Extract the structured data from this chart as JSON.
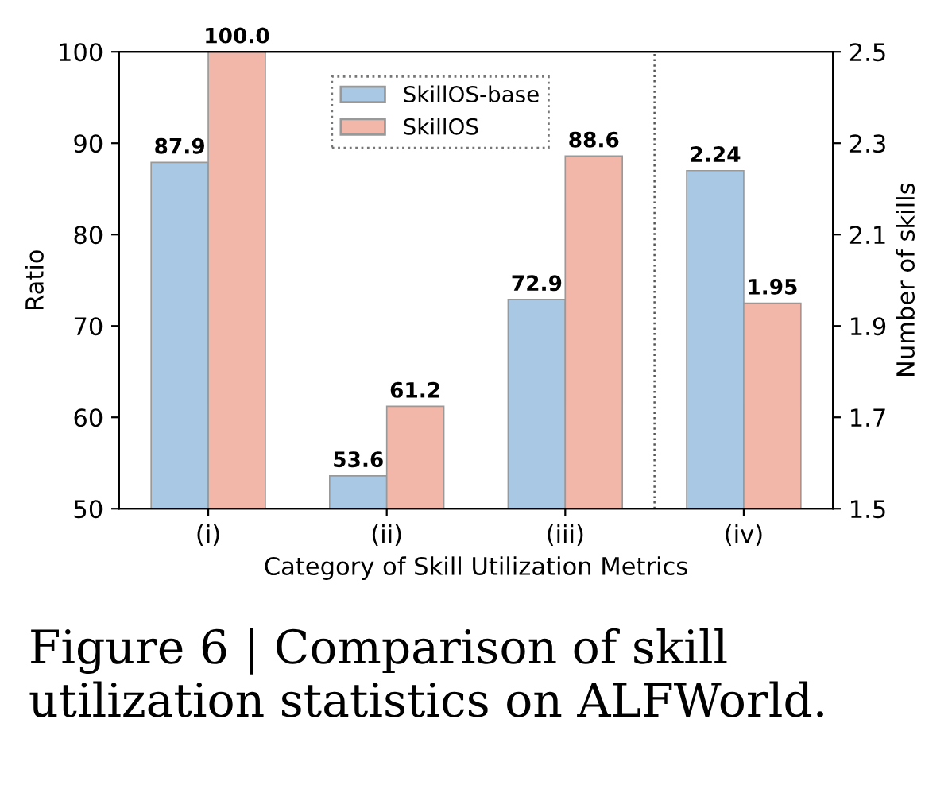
{
  "chart_data": {
    "type": "bar",
    "categories": [
      "(i)",
      "(ii)",
      "(iii)",
      "(iv)"
    ],
    "xlabel": "Category of Skill Utilization Metrics",
    "ylabel": "Ratio",
    "y2label": "Number of skills",
    "ylim": [
      50,
      100
    ],
    "yticks": [
      50,
      60,
      70,
      80,
      90,
      100
    ],
    "y2lim": [
      1.5,
      2.5
    ],
    "y2ticks": [
      1.5,
      1.7,
      1.9,
      2.1,
      2.3,
      2.5
    ],
    "series": [
      {
        "name": "SkillOS-base",
        "color": "#a9c8e3",
        "values": [
          87.9,
          53.6,
          72.9,
          null
        ],
        "value_labels": [
          "87.9",
          "53.6",
          "72.9",
          null
        ]
      },
      {
        "name": "SkillOS",
        "color": "#f3b7aa",
        "values": [
          100,
          61.2,
          88.6,
          null
        ],
        "value_labels": [
          "100.0",
          "61.2",
          "88.6",
          null
        ]
      },
      {
        "color": "#a9c8e3",
        "axis": "y2",
        "values": [
          null,
          null,
          null,
          2.24
        ],
        "value_labels": [
          null,
          null,
          null,
          "2.24"
        ]
      },
      {
        "color": "#f3b7aa",
        "axis": "y2",
        "values": [
          null,
          null,
          null,
          1.95
        ],
        "value_labels": [
          null,
          null,
          null,
          "1.95"
        ]
      }
    ],
    "legend": "top",
    "grid": false,
    "annotations": [
      "Figure 6 | Comparison of skill utilization statistics on ALFWorld."
    ]
  }
}
